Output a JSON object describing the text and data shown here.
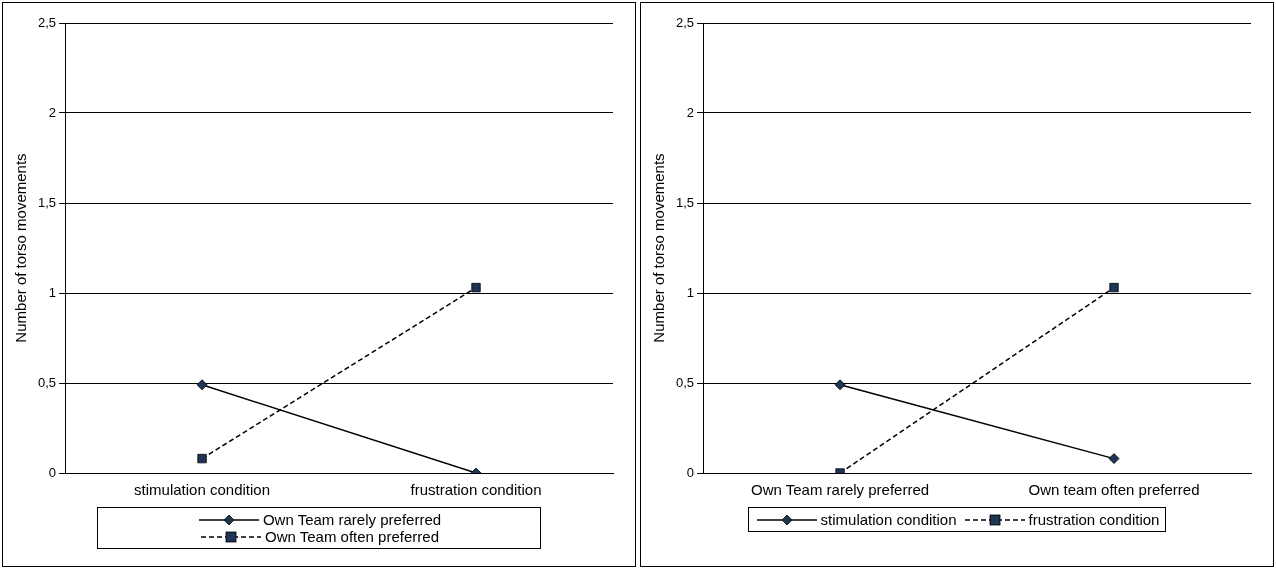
{
  "chart_data": [
    {
      "type": "line",
      "ylabel": "Number of torso movements",
      "categories": [
        "stimulation condition",
        "frustration condition"
      ],
      "ylim": [
        0,
        2.5
      ],
      "yticks": [
        {
          "value": 0,
          "label": "0"
        },
        {
          "value": 0.5,
          "label": "0,5"
        },
        {
          "value": 1,
          "label": "1"
        },
        {
          "value": 1.5,
          "label": "1,5"
        },
        {
          "value": 2,
          "label": "2"
        },
        {
          "value": 2.5,
          "label": "2,5"
        }
      ],
      "grid": "y",
      "legend": "bottom",
      "series": [
        {
          "name": "Own Team rarely preferred",
          "color": "#1f3556",
          "values": [
            0.49,
            0
          ],
          "marker": "diamond",
          "line_style": "solid"
        },
        {
          "name": "Own Team often preferred",
          "color": "#1f3556",
          "values": [
            0.08,
            1.03
          ],
          "marker": "square",
          "line_style": "dashed"
        }
      ]
    },
    {
      "type": "line",
      "ylabel": "Number of torso movements",
      "categories": [
        "Own Team rarely preferred",
        "Own team often preferred"
      ],
      "ylim": [
        0,
        2.5
      ],
      "yticks": [
        {
          "value": 0,
          "label": "0"
        },
        {
          "value": 0.5,
          "label": "0,5"
        },
        {
          "value": 1,
          "label": "1"
        },
        {
          "value": 1.5,
          "label": "1,5"
        },
        {
          "value": 2,
          "label": "2"
        },
        {
          "value": 2.5,
          "label": "2,5"
        }
      ],
      "grid": "y",
      "legend": "bottom",
      "series": [
        {
          "name": "stimulation condition",
          "color": "#1f3556",
          "values": [
            0.49,
            0.08
          ],
          "marker": "diamond",
          "line_style": "solid"
        },
        {
          "name": "frustration condition",
          "color": "#1f3556",
          "values": [
            0,
            1.03
          ],
          "marker": "square",
          "line_style": "dashed"
        }
      ]
    }
  ]
}
